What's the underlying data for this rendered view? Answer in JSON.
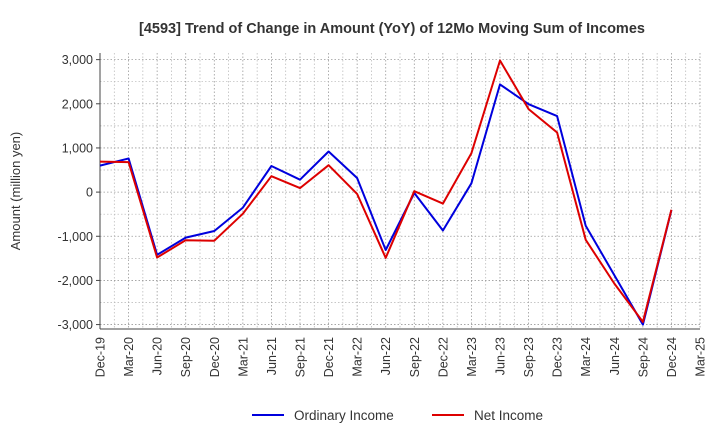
{
  "chart_data": {
    "type": "line",
    "title": "[4593]  Trend of Change in Amount (YoY) of 12Mo Moving Sum of Incomes",
    "xlabel": "",
    "ylabel": "Amount (million yen)",
    "ylim": [
      -3100,
      3150
    ],
    "yticks": [
      -3000,
      -2000,
      -1000,
      0,
      1000,
      2000,
      3000
    ],
    "ytick_labels": [
      "-3,000",
      "-2,000",
      "-1,000",
      "0",
      "1,000",
      "2,000",
      "3,000"
    ],
    "categories": [
      "Dec-19",
      "Mar-20",
      "Jun-20",
      "Sep-20",
      "Dec-20",
      "Mar-21",
      "Jun-21",
      "Sep-21",
      "Dec-21",
      "Mar-22",
      "Jun-22",
      "Sep-22",
      "Dec-22",
      "Mar-23",
      "Jun-23",
      "Sep-23",
      "Dec-23",
      "Mar-24",
      "Jun-24",
      "Sep-24",
      "Dec-24",
      "Mar-25"
    ],
    "grid": true,
    "legend_position": "bottom",
    "series": [
      {
        "name": "Ordinary Income",
        "color": "#0000dd",
        "values": [
          600,
          760,
          -1420,
          -1030,
          -880,
          -350,
          590,
          280,
          920,
          320,
          -1310,
          -20,
          -870,
          200,
          2440,
          1990,
          1720,
          -760,
          -1880,
          -3000,
          -410,
          null
        ]
      },
      {
        "name": "Net Income",
        "color": "#dd0000",
        "values": [
          690,
          680,
          -1480,
          -1090,
          -1100,
          -490,
          360,
          90,
          610,
          -40,
          -1490,
          20,
          -260,
          880,
          2980,
          1880,
          1350,
          -1080,
          -2070,
          -2940,
          -400,
          null
        ]
      }
    ]
  }
}
